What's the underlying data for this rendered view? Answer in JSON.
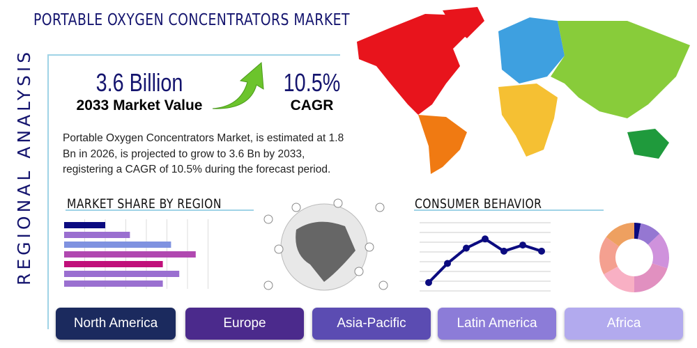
{
  "title": "PORTABLE OXYGEN CONCENTRATORS MARKET",
  "side_label": "REGIONAL ANALYSIS",
  "market_value": {
    "value": "3.6 Billion",
    "label": "2033 Market Value"
  },
  "cagr": {
    "value": "10.5%",
    "label": "CAGR"
  },
  "description": "Portable Oxygen Concentrators Market, is estimated at 1.8 Bn in 2026, is projected to grow to 3.6 Bn by 2033, registering a CAGR of 10.5% during the forecast period.",
  "market_share": {
    "heading": "MARKET SHARE BY REGION",
    "bars": [
      2,
      3.2,
      5.2,
      6.4,
      4.8,
      5.6,
      4.8
    ],
    "colors": [
      "#0b0b80",
      "#9a6fd0",
      "#7f92e0",
      "#b048b0",
      "#c0107a",
      "#9a6fd0",
      "#9a70d0"
    ]
  },
  "consumer": {
    "heading": "CONSUMER BEHAVIOR",
    "line": [
      1,
      3.5,
      5.5,
      6.7,
      5.1,
      5.9,
      5.1
    ],
    "donut": [
      3,
      10,
      17,
      20,
      17,
      18,
      15
    ],
    "donut_colors": [
      "#0b0b80",
      "#9577d2",
      "#cf92dc",
      "#e190c0",
      "#f8b0c4",
      "#f4a090",
      "#eea060"
    ]
  },
  "regions": [
    {
      "label": "North America",
      "color": "#1b2a5e"
    },
    {
      "label": "Europe",
      "color": "#4b2a8c"
    },
    {
      "label": "Asia-Pacific",
      "color": "#5b4cb2"
    },
    {
      "label": "Latin America",
      "color": "#8c7cd8"
    },
    {
      "label": "Africa",
      "color": "#b2aaee"
    }
  ]
}
